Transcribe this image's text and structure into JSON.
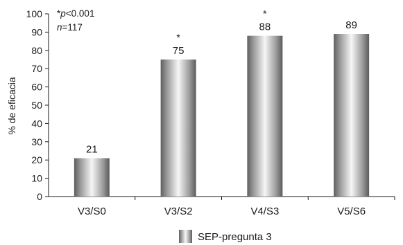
{
  "chart_data": {
    "type": "bar",
    "categories": [
      "V3/S0",
      "V3/S2",
      "V4/S3",
      "V5/S6"
    ],
    "series": [
      {
        "name": "SEP-pregunta 3",
        "values": [
          21,
          75,
          88,
          89
        ]
      }
    ],
    "value_labels": [
      "21",
      "75",
      "88",
      "89"
    ],
    "significance_markers": [
      "",
      "*",
      "*",
      ""
    ],
    "ylabel": "% de eficacia",
    "xlabel": "",
    "ylim": [
      0,
      100
    ],
    "y_ticks": [
      0,
      10,
      20,
      30,
      40,
      50,
      60,
      70,
      80,
      90,
      100
    ],
    "grid": false,
    "legend_position": "bottom-center",
    "annotation": {
      "p_prefix": "*",
      "p_symbol": "p",
      "p_value": "<0.001",
      "n_symbol": "n",
      "n_value": "=117"
    }
  }
}
